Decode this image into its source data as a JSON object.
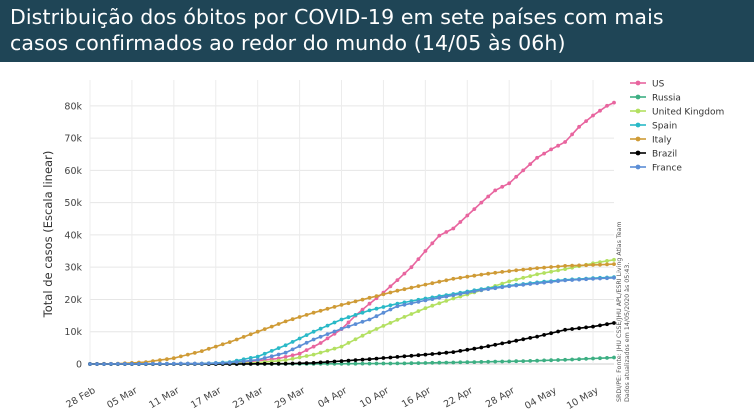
{
  "banner": {
    "line1": "Distribuição dos óbitos por COVID-19 em sete países com mais",
    "line2": "casos confirmados ao redor do mundo (14/05 às 06h)"
  },
  "chart_data": {
    "type": "line",
    "title": "Distribuição dos óbitos por COVID-19 em sete países com mais casos confirmados ao redor do mundo (14/05 às 06h)",
    "ylabel": "Total de casos (Escala linear)",
    "xlabel": "",
    "x_ticks": [
      "28 Feb",
      "05 Mar",
      "11 Mar",
      "17 Mar",
      "23 Mar",
      "29 Mar",
      "04 Apr",
      "10 Apr",
      "16 Apr",
      "22 Apr",
      "28 Apr",
      "04 May",
      "10 May"
    ],
    "y_ticks": [
      "0",
      "10k",
      "20k",
      "30k",
      "40k",
      "50k",
      "60k",
      "70k",
      "80k"
    ],
    "ylim": [
      0,
      88000
    ],
    "x_range_days": [
      0,
      75
    ],
    "grid": true,
    "legend_position": "top-right",
    "source_note": [
      "SRDI/PE: Fonte: JHU CSSE/JHU APL/ESRI Living Atlas Team",
      "Dados atualizados em 14/05/2020 às 05:43."
    ],
    "series": [
      {
        "name": "US",
        "color": "#e8659f",
        "keyframes": [
          [
            0,
            0
          ],
          [
            20,
            120
          ],
          [
            27,
            1700
          ],
          [
            30,
            3200
          ],
          [
            33,
            6500
          ],
          [
            36,
            10800
          ],
          [
            38,
            15000
          ],
          [
            40,
            18700
          ],
          [
            42,
            22100
          ],
          [
            44,
            26000
          ],
          [
            46,
            30000
          ],
          [
            48,
            35000
          ],
          [
            50,
            39800
          ],
          [
            52,
            42000
          ],
          [
            54,
            46000
          ],
          [
            56,
            50000
          ],
          [
            58,
            53800
          ],
          [
            60,
            56000
          ],
          [
            62,
            60000
          ],
          [
            64,
            63900
          ],
          [
            66,
            66500
          ],
          [
            68,
            68800
          ],
          [
            70,
            73500
          ],
          [
            72,
            77000
          ],
          [
            74,
            80000
          ],
          [
            75,
            81000
          ],
          [
            76,
            82500
          ],
          [
            77,
            84100
          ]
        ]
      },
      {
        "name": "Russia",
        "color": "#3daf83",
        "keyframes": [
          [
            0,
            0
          ],
          [
            35,
            50
          ],
          [
            45,
            200
          ],
          [
            55,
            600
          ],
          [
            62,
            900
          ],
          [
            68,
            1300
          ],
          [
            72,
            1700
          ],
          [
            77,
            2200
          ]
        ]
      },
      {
        "name": "United Kingdom",
        "color": "#b3e061",
        "keyframes": [
          [
            0,
            0
          ],
          [
            20,
            100
          ],
          [
            24,
            400
          ],
          [
            28,
            1200
          ],
          [
            32,
            2900
          ],
          [
            36,
            5400
          ],
          [
            40,
            9900
          ],
          [
            44,
            13700
          ],
          [
            48,
            17300
          ],
          [
            52,
            20300
          ],
          [
            56,
            22800
          ],
          [
            60,
            25600
          ],
          [
            64,
            27800
          ],
          [
            68,
            29400
          ],
          [
            72,
            31200
          ],
          [
            75,
            32300
          ],
          [
            77,
            33300
          ]
        ]
      },
      {
        "name": "Spain",
        "color": "#29b9c7",
        "keyframes": [
          [
            0,
            0
          ],
          [
            16,
            100
          ],
          [
            20,
            600
          ],
          [
            24,
            2300
          ],
          [
            28,
            5800
          ],
          [
            32,
            10000
          ],
          [
            36,
            13800
          ],
          [
            40,
            16600
          ],
          [
            44,
            18700
          ],
          [
            48,
            20300
          ],
          [
            52,
            21700
          ],
          [
            56,
            23200
          ],
          [
            60,
            24300
          ],
          [
            64,
            25300
          ],
          [
            68,
            26100
          ],
          [
            72,
            26600
          ],
          [
            77,
            27100
          ]
        ]
      },
      {
        "name": "Italy",
        "color": "#cf9b36",
        "keyframes": [
          [
            0,
            0
          ],
          [
            4,
            100
          ],
          [
            8,
            600
          ],
          [
            12,
            1800
          ],
          [
            16,
            4000
          ],
          [
            20,
            6800
          ],
          [
            24,
            10000
          ],
          [
            28,
            13200
          ],
          [
            32,
            15900
          ],
          [
            36,
            18300
          ],
          [
            40,
            20500
          ],
          [
            44,
            22700
          ],
          [
            48,
            24600
          ],
          [
            52,
            26400
          ],
          [
            56,
            27700
          ],
          [
            60,
            28800
          ],
          [
            64,
            29700
          ],
          [
            68,
            30400
          ],
          [
            72,
            30700
          ],
          [
            77,
            31100
          ]
        ]
      },
      {
        "name": "Brazil",
        "color": "#000000",
        "keyframes": [
          [
            0,
            0
          ],
          [
            20,
            0
          ],
          [
            28,
            100
          ],
          [
            32,
            350
          ],
          [
            36,
            900
          ],
          [
            40,
            1500
          ],
          [
            44,
            2200
          ],
          [
            48,
            2900
          ],
          [
            52,
            3700
          ],
          [
            56,
            5100
          ],
          [
            60,
            6800
          ],
          [
            64,
            8500
          ],
          [
            68,
            10600
          ],
          [
            72,
            11600
          ],
          [
            75,
            12700
          ],
          [
            77,
            13200
          ]
        ]
      },
      {
        "name": "France",
        "color": "#5b8ed6",
        "keyframes": [
          [
            0,
            0
          ],
          [
            16,
            100
          ],
          [
            20,
            400
          ],
          [
            24,
            1300
          ],
          [
            28,
            3500
          ],
          [
            32,
            7600
          ],
          [
            36,
            10900
          ],
          [
            40,
            13800
          ],
          [
            44,
            17900
          ],
          [
            48,
            19700
          ],
          [
            52,
            21300
          ],
          [
            56,
            22900
          ],
          [
            60,
            24100
          ],
          [
            64,
            25000
          ],
          [
            68,
            25900
          ],
          [
            72,
            26400
          ],
          [
            77,
            26900
          ]
        ]
      }
    ]
  }
}
